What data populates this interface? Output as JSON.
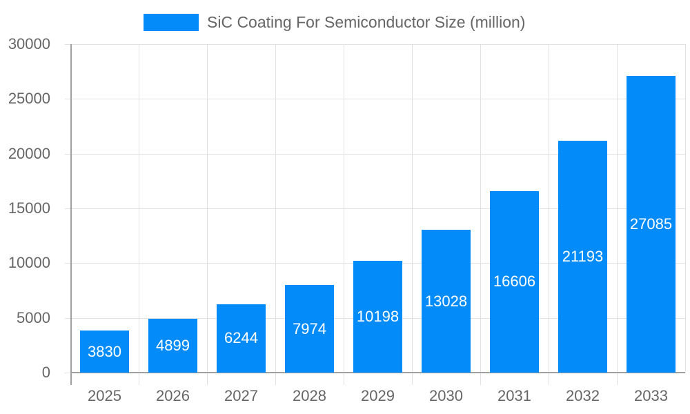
{
  "legend": {
    "label": "SiC Coating For Semiconductor Size (million)",
    "color": "#038cf9"
  },
  "chart_data": {
    "type": "bar",
    "title": "",
    "xlabel": "",
    "ylabel": "",
    "ylim": [
      0,
      30000
    ],
    "yticks": [
      0,
      5000,
      10000,
      15000,
      20000,
      25000,
      30000
    ],
    "grid": true,
    "legend_position": "top",
    "categories": [
      "2025",
      "2026",
      "2027",
      "2028",
      "2029",
      "2030",
      "2031",
      "2032",
      "2033"
    ],
    "series": [
      {
        "name": "SiC Coating For Semiconductor Size (million)",
        "color": "#038cf9",
        "values": [
          3830,
          4899,
          6244,
          7974,
          10198,
          13028,
          16606,
          21193,
          27085
        ]
      }
    ]
  }
}
